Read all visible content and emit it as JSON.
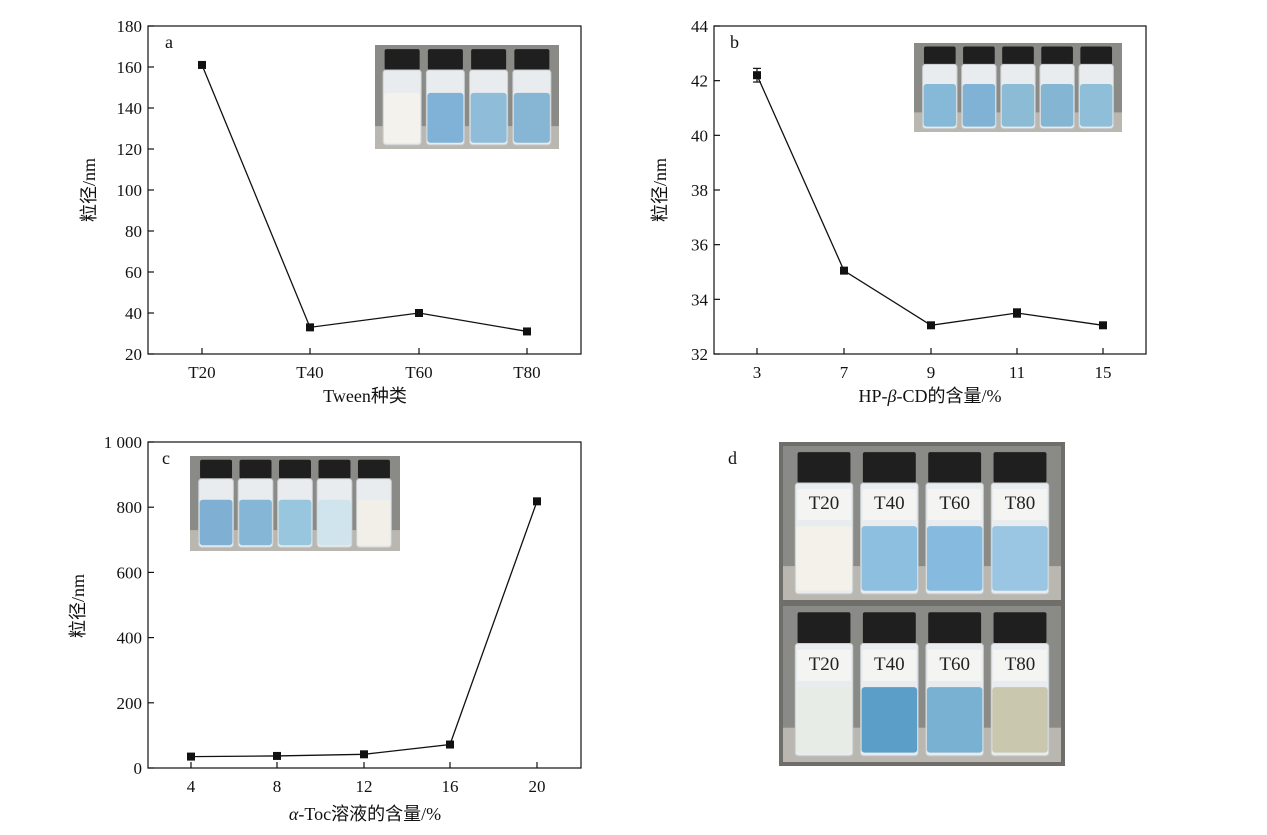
{
  "chart_data": [
    {
      "panel": "a",
      "type": "line",
      "categories": [
        "T20",
        "T40",
        "T60",
        "T80"
      ],
      "values": [
        161,
        33,
        40,
        31
      ],
      "xlabel": "Tween种类",
      "ylabel": "粒径/nm",
      "ylim": [
        20,
        180
      ],
      "yticks": [
        "20",
        "40",
        "60",
        "80",
        "100",
        "120",
        "140",
        "160",
        "180"
      ],
      "grid": false,
      "inset_photo": {
        "vials": 4,
        "liquid_colors": [
          "#f4f2ec",
          "#7fb2d6",
          "#8fbcd9",
          "#86b6d4"
        ]
      }
    },
    {
      "panel": "b",
      "type": "line",
      "categories": [
        "3",
        "7",
        "9",
        "11",
        "15"
      ],
      "values": [
        42.2,
        35.05,
        33.05,
        33.5,
        33.05
      ],
      "errors": [
        0.25,
        0.05,
        0.05,
        0.15,
        0.05
      ],
      "xlabel_parts": [
        "HP-",
        "β",
        "-CD的含量/%"
      ],
      "ylabel": "粒径/nm",
      "ylim": [
        32,
        44
      ],
      "yticks": [
        "32",
        "34",
        "36",
        "38",
        "40",
        "42",
        "44"
      ],
      "grid": false,
      "inset_photo": {
        "vials": 5,
        "liquid_colors": [
          "#86b8d8",
          "#7fb2d4",
          "#8cbbd6",
          "#84b5d3",
          "#8fbed8"
        ]
      }
    },
    {
      "panel": "c",
      "type": "line",
      "categories": [
        "4",
        "8",
        "12",
        "16",
        "20"
      ],
      "values": [
        35,
        37,
        42,
        72,
        818
      ],
      "xlabel_parts": [
        "α",
        "-Toc溶液的含量/%"
      ],
      "ylabel": "粒径/nm",
      "ylim": [
        0,
        1000
      ],
      "yticks": [
        "0",
        "200",
        "400",
        "600",
        "800",
        "1 000"
      ],
      "grid": false,
      "inset_photo": {
        "vials": 5,
        "liquid_colors": [
          "#7fb0d4",
          "#86b6d6",
          "#98c6df",
          "#cfe4ec",
          "#f1efe8"
        ]
      }
    }
  ],
  "panel_d": {
    "letter": "d",
    "rows": [
      {
        "labels": [
          "T20",
          "T40",
          "T60",
          "T80"
        ],
        "liquid_colors": [
          "#f3f1ea",
          "#8dbfe0",
          "#86badf",
          "#9ac6e3"
        ]
      },
      {
        "labels": [
          "T20",
          "T40",
          "T60",
          "T80"
        ],
        "liquid_colors": [
          "#e8ece6",
          "#5b9fc9",
          "#78b1d2",
          "#c9c8ae"
        ]
      }
    ]
  }
}
